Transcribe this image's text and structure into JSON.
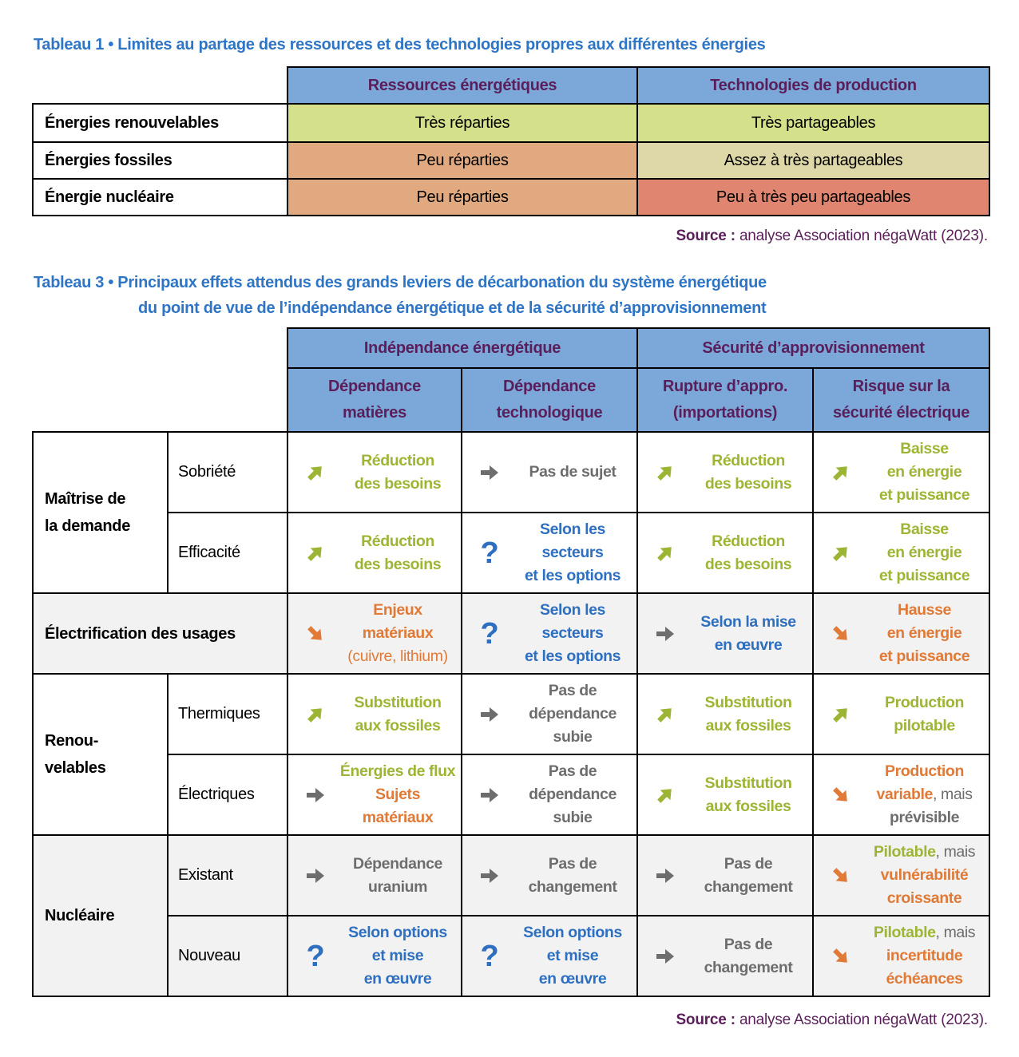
{
  "table1": {
    "title_num": "Tableau 1 •",
    "title": "Limites au partage des ressources et des technologies propres aux différentes énergies",
    "headers": [
      "Ressources énergétiques",
      "Technologies de production"
    ],
    "rows": [
      {
        "label": "Énergies renouvelables",
        "cells": [
          "Très réparties",
          "Très partageables"
        ],
        "colors": [
          "#d4e08a",
          "#d4e08a"
        ]
      },
      {
        "label": "Énergies fossiles",
        "cells": [
          "Peu réparties",
          "Assez à très partageables"
        ],
        "colors": [
          "#e0a97f",
          "#ded8a8"
        ]
      },
      {
        "label": "Énergie nucléaire",
        "cells": [
          "Peu réparties",
          "Peu à très peu partageables"
        ],
        "colors": [
          "#e0a97f",
          "#e08670"
        ]
      }
    ],
    "source_label": "Source :",
    "source_text": " analyse Association négaWatt (2023)."
  },
  "table3": {
    "title_num": "Tableau 3 •",
    "title_line1": "Principaux effets attendus des grands leviers de décarbonation du système énergétique",
    "title_line2": "du point de vue de l’indépendance énergétique et de la sécurité d’approvisionnement",
    "group_headers": [
      "Indépendance énergétique",
      "Sécurité d’approvisionnement"
    ],
    "sub_headers": [
      [
        "Dépendance",
        "matières"
      ],
      [
        "Dépendance",
        "technologique"
      ],
      [
        "Rupture d’appro.",
        "(importations)"
      ],
      [
        "Risque sur la",
        "sécurité électrique"
      ]
    ],
    "groups": [
      {
        "label": [
          "Maîtrise de",
          "la demande"
        ],
        "grey": false,
        "rows": [
          {
            "sub": "Sobriété",
            "cells": [
              {
                "icon": "arrow-up-right",
                "lines": [
                  [
                    {
                      "t": "Réduction",
                      "c": "g"
                    }
                  ],
                  [
                    {
                      "t": "des besoins",
                      "c": "g"
                    }
                  ]
                ]
              },
              {
                "icon": "arrow-right",
                "lines": [
                  [
                    {
                      "t": "Pas de sujet",
                      "c": "gr"
                    }
                  ]
                ]
              },
              {
                "icon": "arrow-up-right",
                "lines": [
                  [
                    {
                      "t": "Réduction",
                      "c": "g"
                    }
                  ],
                  [
                    {
                      "t": "des besoins",
                      "c": "g"
                    }
                  ]
                ]
              },
              {
                "icon": "arrow-up-right",
                "lines": [
                  [
                    {
                      "t": "Baisse",
                      "c": "g"
                    }
                  ],
                  [
                    {
                      "t": "en énergie",
                      "c": "g"
                    }
                  ],
                  [
                    {
                      "t": "et puissance",
                      "c": "g"
                    }
                  ]
                ]
              }
            ]
          },
          {
            "sub": "Efficacité",
            "cells": [
              {
                "icon": "arrow-up-right",
                "lines": [
                  [
                    {
                      "t": "Réduction",
                      "c": "g"
                    }
                  ],
                  [
                    {
                      "t": "des besoins",
                      "c": "g"
                    }
                  ]
                ]
              },
              {
                "icon": "question",
                "lines": [
                  [
                    {
                      "t": "Selon les",
                      "c": "b"
                    }
                  ],
                  [
                    {
                      "t": "secteurs",
                      "c": "b"
                    }
                  ],
                  [
                    {
                      "t": "et les options",
                      "c": "b"
                    }
                  ]
                ]
              },
              {
                "icon": "arrow-up-right",
                "lines": [
                  [
                    {
                      "t": "Réduction",
                      "c": "g"
                    }
                  ],
                  [
                    {
                      "t": "des besoins",
                      "c": "g"
                    }
                  ]
                ]
              },
              {
                "icon": "arrow-up-right",
                "lines": [
                  [
                    {
                      "t": "Baisse",
                      "c": "g"
                    }
                  ],
                  [
                    {
                      "t": "en énergie",
                      "c": "g"
                    }
                  ],
                  [
                    {
                      "t": "et puissance",
                      "c": "g"
                    }
                  ]
                ]
              }
            ]
          }
        ]
      },
      {
        "label": [
          "Électrification des usages"
        ],
        "grey": true,
        "rows": [
          {
            "sub": "",
            "cells": [
              {
                "icon": "arrow-down-right",
                "lines": [
                  [
                    {
                      "t": "Enjeux",
                      "c": "o"
                    }
                  ],
                  [
                    {
                      "t": "matériaux",
                      "c": "o"
                    }
                  ],
                  [
                    {
                      "t": "(cuivre, lithium)",
                      "c": "o",
                      "n": true
                    }
                  ]
                ]
              },
              {
                "icon": "question",
                "lines": [
                  [
                    {
                      "t": "Selon les",
                      "c": "b"
                    }
                  ],
                  [
                    {
                      "t": "secteurs",
                      "c": "b"
                    }
                  ],
                  [
                    {
                      "t": "et les options",
                      "c": "b"
                    }
                  ]
                ]
              },
              {
                "icon": "arrow-right",
                "lines": [
                  [
                    {
                      "t": "Selon la mise",
                      "c": "b"
                    }
                  ],
                  [
                    {
                      "t": "en œuvre",
                      "c": "b"
                    }
                  ]
                ]
              },
              {
                "icon": "arrow-down-right",
                "lines": [
                  [
                    {
                      "t": "Hausse",
                      "c": "o"
                    }
                  ],
                  [
                    {
                      "t": "en énergie",
                      "c": "o"
                    }
                  ],
                  [
                    {
                      "t": "et puissance",
                      "c": "o"
                    }
                  ]
                ]
              }
            ]
          }
        ]
      },
      {
        "label": [
          "Renou-",
          "velables"
        ],
        "grey": false,
        "rows": [
          {
            "sub": "Thermiques",
            "cells": [
              {
                "icon": "arrow-up-right",
                "lines": [
                  [
                    {
                      "t": "Substitution",
                      "c": "g"
                    }
                  ],
                  [
                    {
                      "t": "aux fossiles",
                      "c": "g"
                    }
                  ]
                ]
              },
              {
                "icon": "arrow-right",
                "lines": [
                  [
                    {
                      "t": "Pas de",
                      "c": "gr"
                    }
                  ],
                  [
                    {
                      "t": "dépendance",
                      "c": "gr"
                    }
                  ],
                  [
                    {
                      "t": "subie",
                      "c": "gr"
                    }
                  ]
                ]
              },
              {
                "icon": "arrow-up-right",
                "lines": [
                  [
                    {
                      "t": "Substitution",
                      "c": "g"
                    }
                  ],
                  [
                    {
                      "t": "aux fossiles",
                      "c": "g"
                    }
                  ]
                ]
              },
              {
                "icon": "arrow-up-right",
                "lines": [
                  [
                    {
                      "t": "Production",
                      "c": "g"
                    }
                  ],
                  [
                    {
                      "t": "pilotable",
                      "c": "g"
                    }
                  ]
                ]
              }
            ]
          },
          {
            "sub": "Électriques",
            "cells": [
              {
                "icon": "arrow-right",
                "lines": [
                  [
                    {
                      "t": "Énergies de flux",
                      "c": "g"
                    }
                  ],
                  [
                    {
                      "t": "Sujets",
                      "c": "o"
                    }
                  ],
                  [
                    {
                      "t": "matériaux",
                      "c": "o"
                    }
                  ]
                ]
              },
              {
                "icon": "arrow-right",
                "lines": [
                  [
                    {
                      "t": "Pas de",
                      "c": "gr"
                    }
                  ],
                  [
                    {
                      "t": "dépendance",
                      "c": "gr"
                    }
                  ],
                  [
                    {
                      "t": "subie",
                      "c": "gr"
                    }
                  ]
                ]
              },
              {
                "icon": "arrow-up-right",
                "lines": [
                  [
                    {
                      "t": "Substitution",
                      "c": "g"
                    }
                  ],
                  [
                    {
                      "t": "aux fossiles",
                      "c": "g"
                    }
                  ]
                ]
              },
              {
                "icon": "arrow-down-right",
                "lines": [
                  [
                    {
                      "t": "Production",
                      "c": "o"
                    }
                  ],
                  [
                    {
                      "t": "variable",
                      "c": "o"
                    },
                    {
                      "t": ", mais",
                      "c": "gr",
                      "n": true
                    }
                  ],
                  [
                    {
                      "t": "prévisible",
                      "c": "gr"
                    }
                  ]
                ]
              }
            ]
          }
        ]
      },
      {
        "label": [
          "Nucléaire"
        ],
        "grey": true,
        "rows": [
          {
            "sub": "Existant",
            "cells": [
              {
                "icon": "arrow-right",
                "lines": [
                  [
                    {
                      "t": "Dépendance",
                      "c": "gr"
                    }
                  ],
                  [
                    {
                      "t": "uranium",
                      "c": "gr"
                    }
                  ]
                ]
              },
              {
                "icon": "arrow-right",
                "lines": [
                  [
                    {
                      "t": "Pas de",
                      "c": "gr"
                    }
                  ],
                  [
                    {
                      "t": "changement",
                      "c": "gr"
                    }
                  ]
                ]
              },
              {
                "icon": "arrow-right",
                "lines": [
                  [
                    {
                      "t": "Pas de",
                      "c": "gr"
                    }
                  ],
                  [
                    {
                      "t": "changement",
                      "c": "gr"
                    }
                  ]
                ]
              },
              {
                "icon": "arrow-down-right",
                "lines": [
                  [
                    {
                      "t": "Pilotable",
                      "c": "g"
                    },
                    {
                      "t": ", mais",
                      "c": "gr",
                      "n": true
                    }
                  ],
                  [
                    {
                      "t": "vulnérabilité",
                      "c": "o"
                    }
                  ],
                  [
                    {
                      "t": "croissante",
                      "c": "o"
                    }
                  ]
                ]
              }
            ]
          },
          {
            "sub": "Nouveau",
            "cells": [
              {
                "icon": "question",
                "lines": [
                  [
                    {
                      "t": "Selon options",
                      "c": "b"
                    }
                  ],
                  [
                    {
                      "t": "et mise",
                      "c": "b"
                    }
                  ],
                  [
                    {
                      "t": "en œuvre",
                      "c": "b"
                    }
                  ]
                ]
              },
              {
                "icon": "question",
                "lines": [
                  [
                    {
                      "t": "Selon options",
                      "c": "b"
                    }
                  ],
                  [
                    {
                      "t": "et mise",
                      "c": "b"
                    }
                  ],
                  [
                    {
                      "t": "en œuvre",
                      "c": "b"
                    }
                  ]
                ]
              },
              {
                "icon": "arrow-right",
                "lines": [
                  [
                    {
                      "t": "Pas de",
                      "c": "gr"
                    }
                  ],
                  [
                    {
                      "t": "changement",
                      "c": "gr"
                    }
                  ]
                ]
              },
              {
                "icon": "arrow-down-right",
                "lines": [
                  [
                    {
                      "t": "Pilotable",
                      "c": "g"
                    },
                    {
                      "t": ", mais",
                      "c": "gr",
                      "n": true
                    }
                  ],
                  [
                    {
                      "t": "incertitude",
                      "c": "o"
                    }
                  ],
                  [
                    {
                      "t": "échéances",
                      "c": "o"
                    }
                  ]
                ]
              }
            ]
          }
        ]
      }
    ],
    "source_label": "Source :",
    "source_text": " analyse Association négaWatt (2023)."
  },
  "colors": {
    "header_bg": "#7ba7d9",
    "header_text": "#5a1f5a",
    "title": "#2e75c6",
    "green": "#9db534",
    "grey": "#6d6d6d",
    "blue": "#2e6fc0",
    "orange": "#e07a36"
  }
}
